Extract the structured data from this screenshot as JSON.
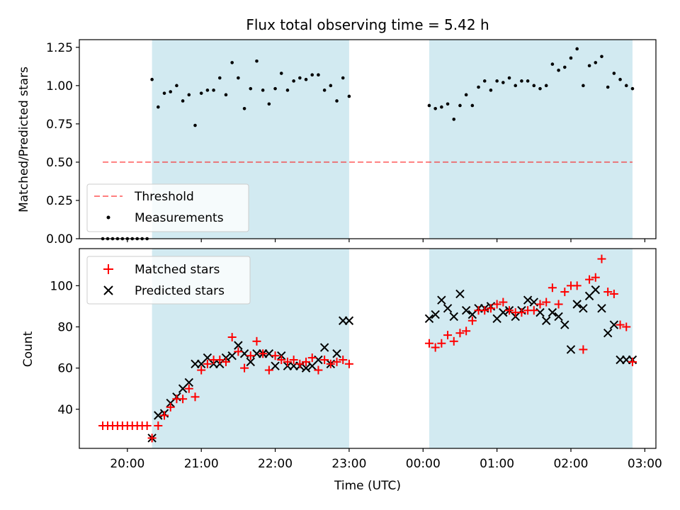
{
  "figure_title": "Flux total observing time = 5.42 h",
  "colors": {
    "shade": "#add8e6",
    "threshold": "#ff0000",
    "matched": "#ff0000",
    "predicted": "#000000",
    "measurement": "#000000"
  },
  "chart_data": [
    {
      "type": "scatter",
      "ylabel": "Matched/Predicted stars",
      "xlabel": "",
      "ylim": [
        0,
        1.3
      ],
      "xlim": [
        "19:21",
        "03:09"
      ],
      "y_ticks": [
        "0.00",
        "0.25",
        "0.50",
        "0.75",
        "1.00",
        "1.25"
      ],
      "grid": false,
      "legend_position": "lower left",
      "legend": [
        "Threshold",
        "Measurements"
      ],
      "shaded_intervals": [
        [
          "20:20",
          "23:00"
        ],
        [
          "00:05",
          "02:50"
        ]
      ],
      "threshold": {
        "name": "Threshold",
        "y": 0.5,
        "x_range": [
          "19:40",
          "02:50"
        ]
      },
      "series": [
        {
          "name": "Measurements",
          "x": [
            "19:40",
            "19:44",
            "19:48",
            "19:52",
            "19:56",
            "20:00",
            "20:04",
            "20:08",
            "20:12",
            "20:16",
            "20:20",
            "20:25",
            "20:30",
            "20:35",
            "20:40",
            "20:45",
            "20:50",
            "20:55",
            "21:00",
            "21:05",
            "21:10",
            "21:15",
            "21:20",
            "21:25",
            "21:30",
            "21:35",
            "21:40",
            "21:45",
            "21:50",
            "21:55",
            "22:00",
            "22:05",
            "22:10",
            "22:15",
            "22:20",
            "22:25",
            "22:30",
            "22:35",
            "22:40",
            "22:45",
            "22:50",
            "22:55",
            "23:00",
            "00:05",
            "00:10",
            "00:15",
            "00:20",
            "00:25",
            "00:30",
            "00:35",
            "00:40",
            "00:45",
            "00:50",
            "00:55",
            "01:00",
            "01:05",
            "01:10",
            "01:15",
            "01:20",
            "01:25",
            "01:30",
            "01:35",
            "01:40",
            "01:45",
            "01:50",
            "01:55",
            "02:00",
            "02:05",
            "02:10",
            "02:15",
            "02:20",
            "02:25",
            "02:30",
            "02:35",
            "02:40",
            "02:45",
            "02:50"
          ],
          "y": [
            0.0,
            0.0,
            0.0,
            0.0,
            0.0,
            0.0,
            0.0,
            0.0,
            0.0,
            0.0,
            1.04,
            0.86,
            0.95,
            0.96,
            1.0,
            0.9,
            0.94,
            0.74,
            0.95,
            0.97,
            0.97,
            1.05,
            0.94,
            1.15,
            1.05,
            0.85,
            0.98,
            1.16,
            0.97,
            0.88,
            0.98,
            1.08,
            0.97,
            1.03,
            1.05,
            1.04,
            1.07,
            1.07,
            0.97,
            1.0,
            0.9,
            1.05,
            0.93,
            0.87,
            0.85,
            0.86,
            0.88,
            0.78,
            0.87,
            0.94,
            0.87,
            0.99,
            1.03,
            0.97,
            1.03,
            1.02,
            1.05,
            1.0,
            1.03,
            1.03,
            1.0,
            0.98,
            1.0,
            1.14,
            1.1,
            1.12,
            1.18,
            1.24,
            1.0,
            1.13,
            1.15,
            1.19,
            0.99,
            1.08,
            1.04,
            1.0,
            0.98
          ]
        }
      ]
    },
    {
      "type": "scatter",
      "xlabel": "Time (UTC)",
      "ylabel": "Count",
      "ylim": [
        21,
        118
      ],
      "xlim": [
        "19:21",
        "03:09"
      ],
      "x_ticks": [
        "20:00",
        "21:00",
        "22:00",
        "23:00",
        "00:00",
        "01:00",
        "02:00",
        "03:00"
      ],
      "y_ticks": [
        "40",
        "60",
        "80",
        "100"
      ],
      "grid": false,
      "legend_position": "upper left",
      "legend": [
        "Matched stars",
        "Predicted stars"
      ],
      "shaded_intervals": [
        [
          "20:20",
          "23:00"
        ],
        [
          "00:05",
          "02:50"
        ]
      ],
      "series": [
        {
          "name": "Matched stars",
          "marker": "+",
          "x": [
            "19:40",
            "19:44",
            "19:48",
            "19:52",
            "19:56",
            "20:00",
            "20:04",
            "20:08",
            "20:12",
            "20:16",
            "20:20",
            "20:25",
            "20:30",
            "20:35",
            "20:40",
            "20:45",
            "20:50",
            "20:55",
            "21:00",
            "21:05",
            "21:10",
            "21:15",
            "21:20",
            "21:25",
            "21:30",
            "21:35",
            "21:40",
            "21:45",
            "21:50",
            "21:55",
            "22:00",
            "22:05",
            "22:10",
            "22:15",
            "22:20",
            "22:25",
            "22:30",
            "22:35",
            "22:40",
            "22:45",
            "22:50",
            "22:55",
            "23:00",
            "00:05",
            "00:10",
            "00:15",
            "00:20",
            "00:25",
            "00:30",
            "00:35",
            "00:40",
            "00:45",
            "00:50",
            "00:55",
            "01:00",
            "01:05",
            "01:10",
            "01:15",
            "01:20",
            "01:25",
            "01:30",
            "01:35",
            "01:40",
            "01:45",
            "01:50",
            "01:55",
            "02:00",
            "02:05",
            "02:10",
            "02:15",
            "02:20",
            "02:25",
            "02:30",
            "02:35",
            "02:40",
            "02:45",
            "02:50"
          ],
          "y": [
            32,
            32,
            32,
            32,
            32,
            32,
            32,
            32,
            32,
            32,
            26,
            32,
            37,
            41,
            45,
            45,
            50,
            46,
            59,
            62,
            64,
            64,
            63,
            75,
            68,
            60,
            66,
            73,
            67,
            59,
            66,
            64,
            63,
            64,
            62,
            63,
            65,
            59,
            64,
            62,
            63,
            64,
            62,
            72,
            70,
            72,
            76,
            73,
            77,
            78,
            83,
            88,
            88,
            89,
            91,
            92,
            88,
            87,
            87,
            88,
            88,
            91,
            92,
            99,
            91,
            97,
            100,
            100,
            69,
            103,
            104,
            113,
            97,
            96,
            81,
            80,
            63
          ]
        },
        {
          "name": "Predicted stars",
          "marker": "x",
          "x": [
            "20:20",
            "20:25",
            "20:30",
            "20:35",
            "20:40",
            "20:45",
            "20:50",
            "20:55",
            "21:00",
            "21:05",
            "21:10",
            "21:15",
            "21:20",
            "21:25",
            "21:30",
            "21:35",
            "21:40",
            "21:45",
            "21:50",
            "21:55",
            "22:00",
            "22:05",
            "22:10",
            "22:15",
            "22:20",
            "22:25",
            "22:30",
            "22:35",
            "22:40",
            "22:45",
            "22:50",
            "22:55",
            "23:00",
            "00:05",
            "00:10",
            "00:15",
            "00:20",
            "00:25",
            "00:30",
            "00:35",
            "00:40",
            "00:45",
            "00:50",
            "00:55",
            "01:00",
            "01:05",
            "01:10",
            "01:15",
            "01:20",
            "01:25",
            "01:30",
            "01:35",
            "01:40",
            "01:45",
            "01:50",
            "01:55",
            "02:00",
            "02:05",
            "02:10",
            "02:15",
            "02:20",
            "02:25",
            "02:30",
            "02:35",
            "02:40",
            "02:45",
            "02:50"
          ],
          "y": [
            26,
            37,
            38,
            43,
            46,
            50,
            53,
            62,
            62,
            65,
            62,
            62,
            65,
            66,
            71,
            67,
            63,
            67,
            67,
            67,
            61,
            66,
            61,
            61,
            61,
            60,
            61,
            64,
            70,
            62,
            67,
            83,
            83,
            84,
            86,
            93,
            89,
            85,
            96,
            88,
            86,
            89,
            89,
            90,
            84,
            87,
            88,
            85,
            88,
            93,
            92,
            87,
            83,
            87,
            85,
            81,
            69,
            91,
            89,
            95,
            98,
            89,
            77,
            81,
            64,
            64,
            64
          ]
        }
      ]
    }
  ]
}
